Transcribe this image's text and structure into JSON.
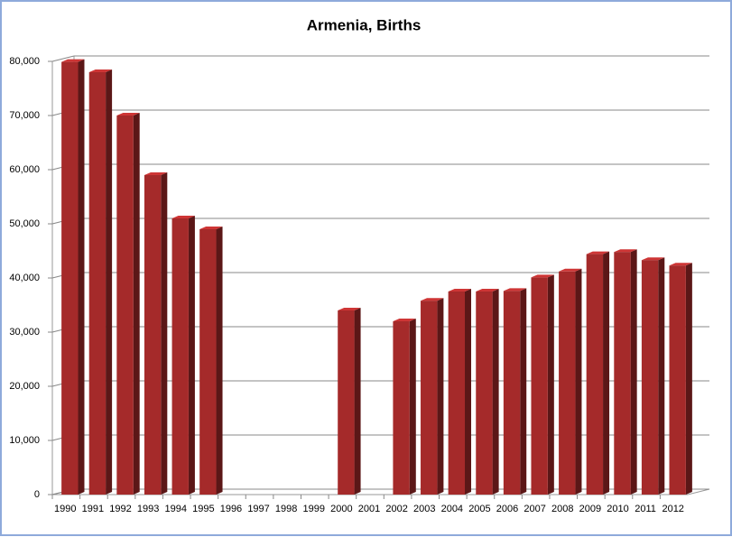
{
  "chart_data": {
    "type": "bar3d",
    "title": "Armenia, Births",
    "categories": [
      "1990",
      "1991",
      "1992",
      "1993",
      "1994",
      "1995",
      "1996",
      "1997",
      "1998",
      "1999",
      "2000",
      "2001",
      "2002",
      "2003",
      "2004",
      "2005",
      "2006",
      "2007",
      "2008",
      "2009",
      "2010",
      "2011",
      "2012"
    ],
    "values": [
      79900,
      78000,
      70000,
      59000,
      51000,
      49000,
      null,
      null,
      null,
      null,
      34000,
      null,
      32000,
      35800,
      37500,
      37500,
      37600,
      40100,
      41200,
      44400,
      44800,
      43300,
      42300
    ],
    "color": "#a52a2a",
    "ylim": [
      0,
      80000
    ],
    "yticks": [
      0,
      {
        "value": 10000,
        "label": "10,000"
      },
      {
        "value": 20000,
        "label": "20,000"
      },
      {
        "value": 30000,
        "label": "30,000"
      },
      {
        "value": 40000,
        "label": "40,000"
      },
      {
        "value": 50000,
        "label": "50,000"
      },
      {
        "value": 60000,
        "label": "60,000"
      },
      {
        "value": 70000,
        "label": "70,000"
      },
      {
        "value": 80000,
        "label": "80,000"
      }
    ],
    "grid": true
  }
}
